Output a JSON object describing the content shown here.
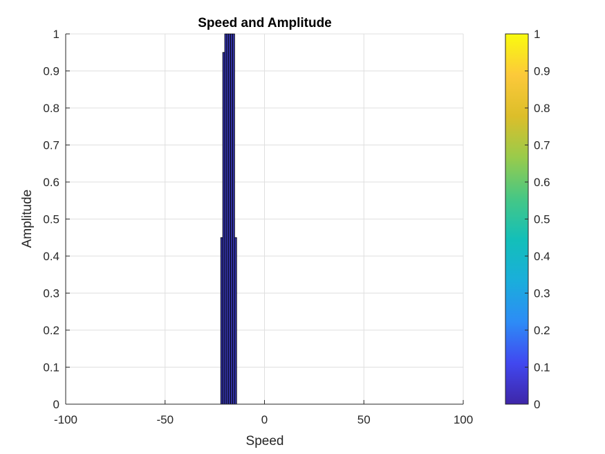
{
  "chart_data": {
    "type": "bar",
    "title": "Speed and Amplitude",
    "xlabel": "Speed",
    "ylabel": "Amplitude",
    "xlim": [
      -100,
      100
    ],
    "ylim": [
      0,
      1
    ],
    "xticks": [
      -100,
      -50,
      0,
      50,
      100
    ],
    "yticks": [
      0,
      0.1,
      0.2,
      0.3,
      0.4,
      0.5,
      0.6,
      0.7,
      0.8,
      0.9,
      1
    ],
    "grid": true,
    "bar_color": "#3333a5",
    "bars": [
      {
        "x": -22.5,
        "value": 0.0
      },
      {
        "x": -21.5,
        "value": 0.45
      },
      {
        "x": -20.5,
        "value": 0.95
      },
      {
        "x": -19.5,
        "value": 1.0
      },
      {
        "x": -18.5,
        "value": 1.0
      },
      {
        "x": -17.5,
        "value": 1.0
      },
      {
        "x": -16.5,
        "value": 1.0
      },
      {
        "x": -15.5,
        "value": 1.0
      },
      {
        "x": -14.5,
        "value": 0.45
      },
      {
        "x": -13.5,
        "value": 0.0
      }
    ],
    "colorbar": {
      "range": [
        0,
        1
      ],
      "ticks": [
        0,
        0.1,
        0.2,
        0.3,
        0.4,
        0.5,
        0.6,
        0.7,
        0.8,
        0.9,
        1
      ],
      "colormap": "parula",
      "colors": [
        "#3e26a8",
        "#4148f0",
        "#2d8cf6",
        "#1aaedb",
        "#13bfb9",
        "#46c785",
        "#99cb4b",
        "#dcbe2a",
        "#fcc93a",
        "#f9fb0e"
      ]
    }
  }
}
